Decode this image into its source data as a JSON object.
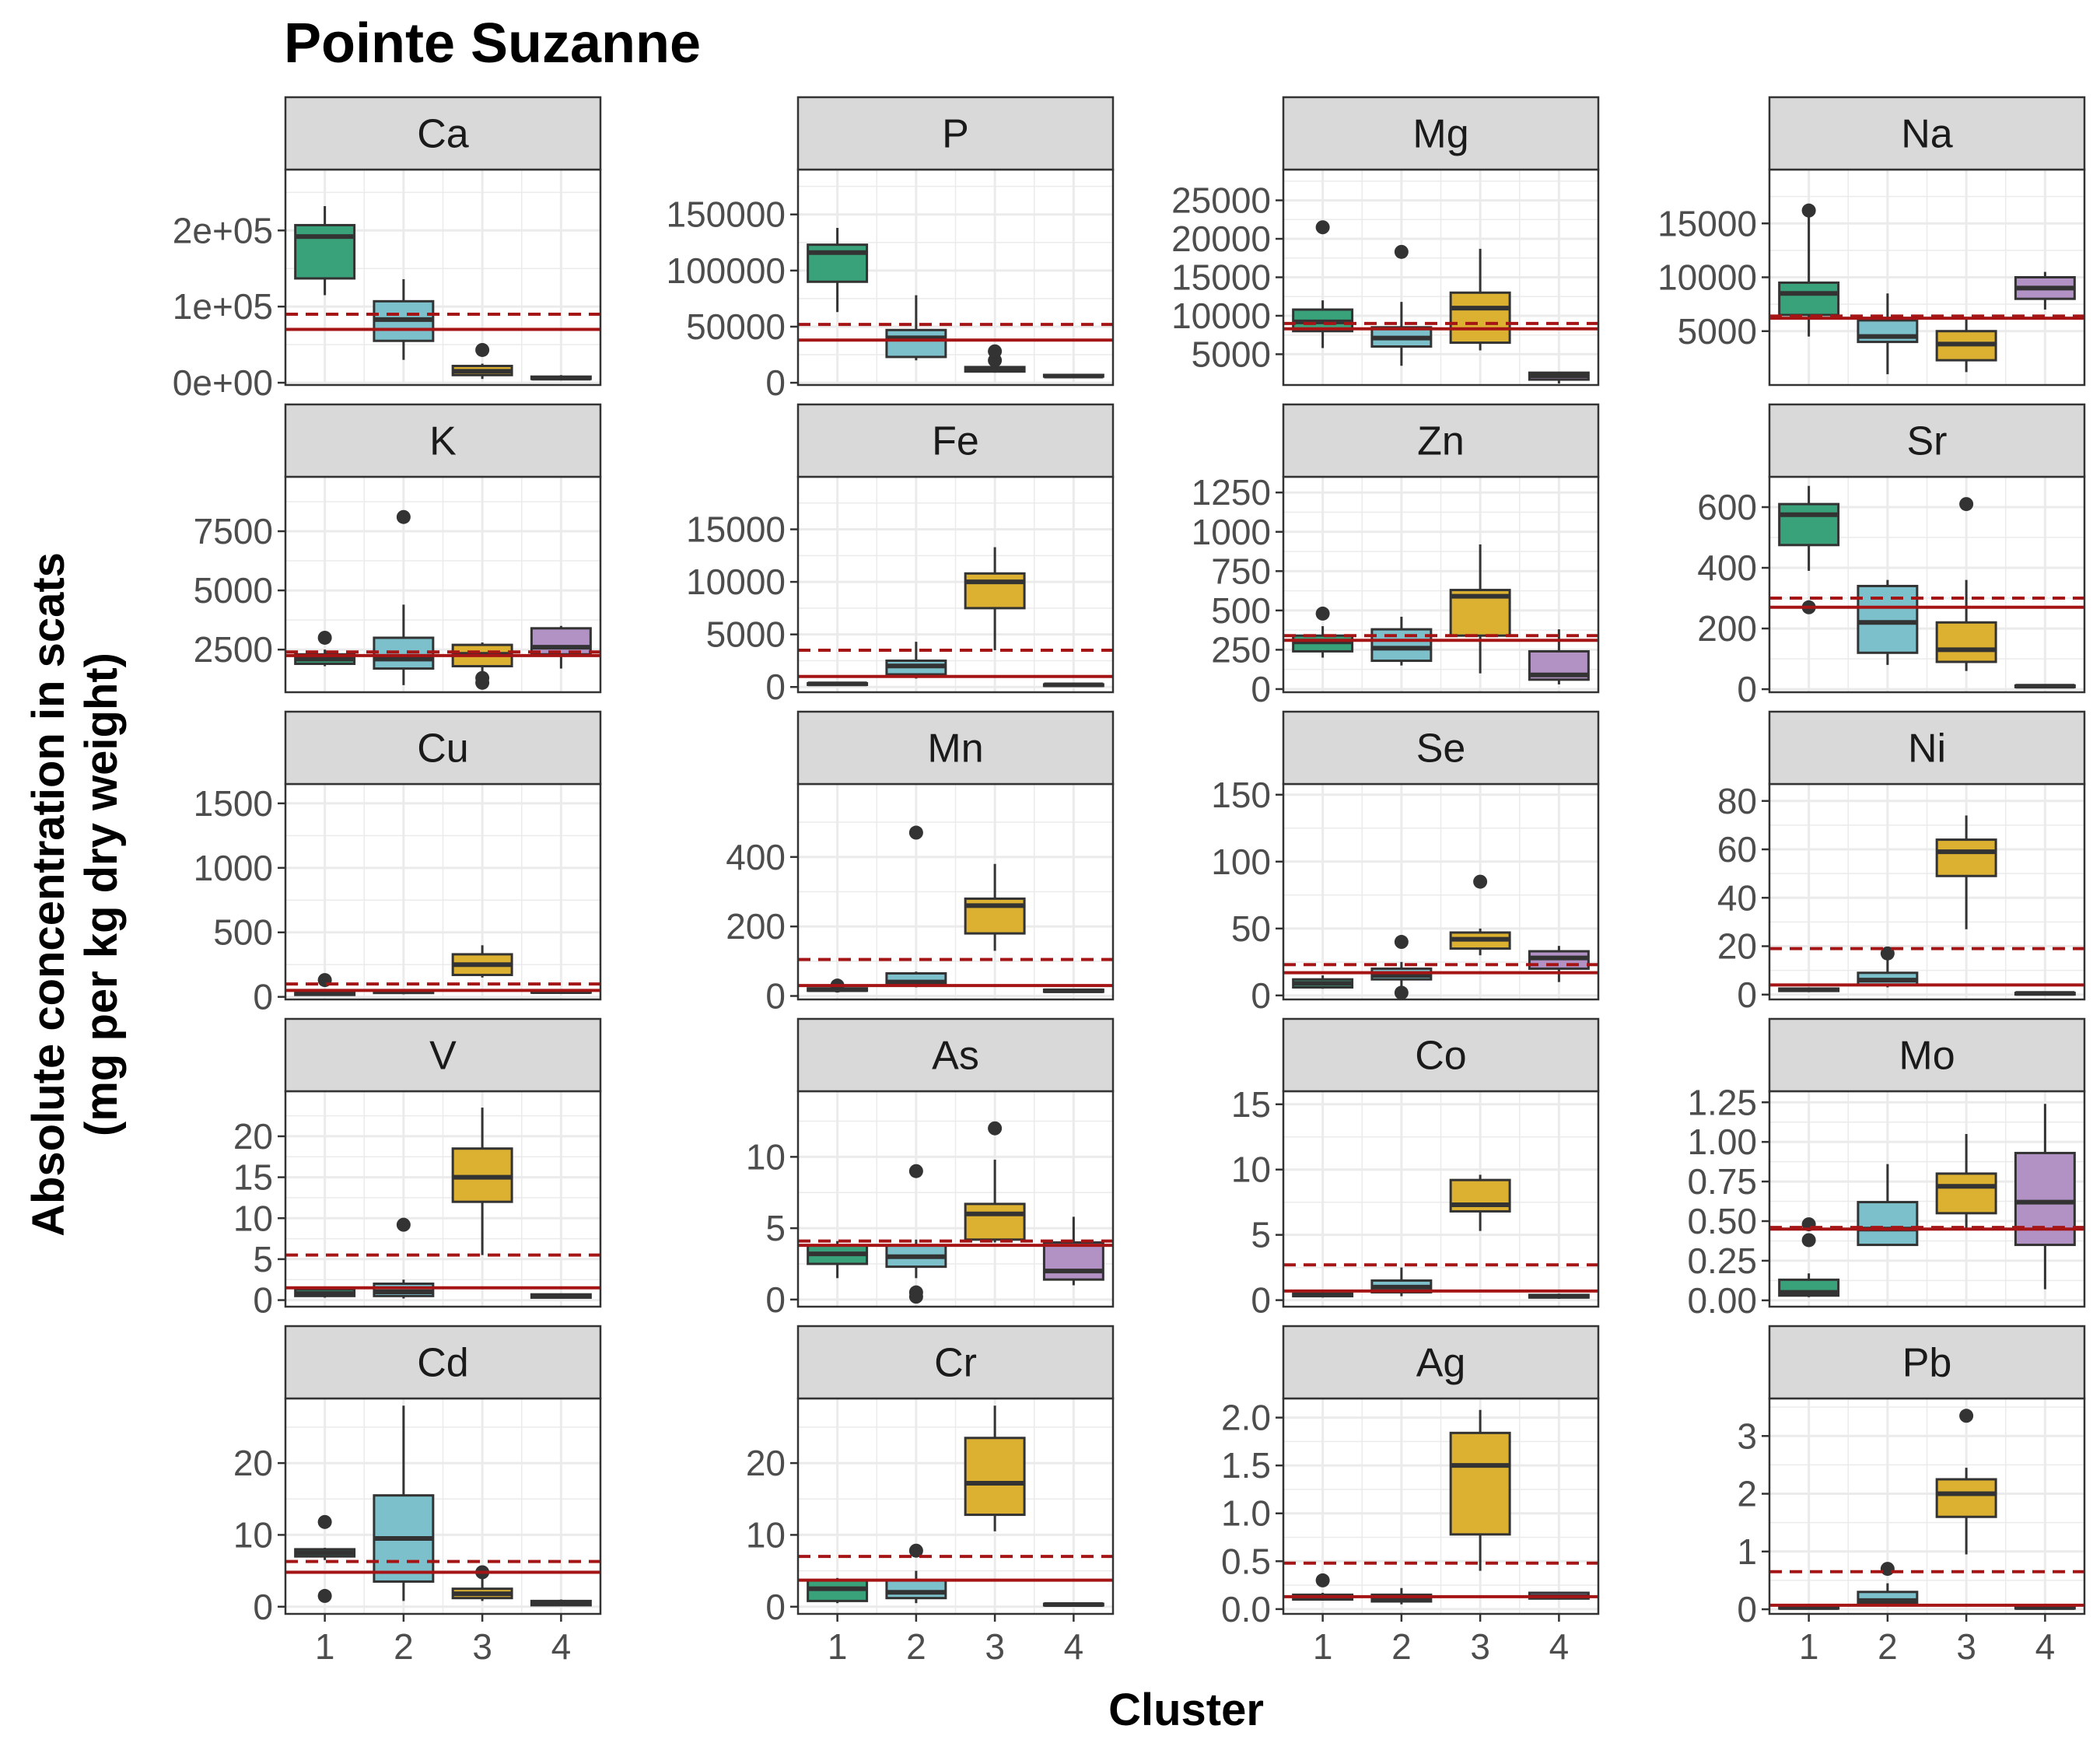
{
  "title": "Pointe Suzanne",
  "xlabel": "Cluster",
  "ylabel_line1": "Absolute concentration in scats",
  "ylabel_line2": "(mg per kg dry weight)",
  "colors": {
    "cluster1": "#3aa27a",
    "cluster2": "#7cc0cb",
    "cluster3": "#dcb031",
    "cluster4": "#b292c4",
    "reference_line": "#a51515",
    "strip_fill": "#d9d9d9",
    "grid": "#ebebeb",
    "box_stroke": "#333333"
  },
  "chart_data": {
    "type": "boxplot",
    "categories": [
      "1",
      "2",
      "3",
      "4"
    ],
    "reference_lines": {
      "solid": "red solid horizontal line (per-element value)",
      "dashed": "red dashed horizontal line (per-element value)"
    },
    "panels": [
      {
        "name": "Ca",
        "ylim": [
          -3000,
          280000
        ],
        "ticks": [
          0,
          100000,
          200000
        ],
        "tick_labels": [
          "0e+00",
          "1e+05",
          "2e+05"
        ],
        "solid": 70000,
        "dashed": 90000,
        "boxes": [
          [
            115000,
            137000,
            192000,
            207000,
            232000,
            []
          ],
          [
            30000,
            55000,
            83000,
            107000,
            136000,
            []
          ],
          [
            5000,
            10000,
            15000,
            22000,
            25000,
            [
              43000
            ]
          ],
          [
            4000,
            5000,
            6000,
            8000,
            10000,
            []
          ]
        ]
      },
      {
        "name": "P",
        "ylim": [
          -2000,
          190000
        ],
        "ticks": [
          0,
          50000,
          100000,
          150000
        ],
        "tick_labels": [
          "0",
          "50000",
          "100000",
          "150000"
        ],
        "solid": 38000,
        "dashed": 52000,
        "boxes": [
          [
            63000,
            90000,
            116000,
            123000,
            138000,
            []
          ],
          [
            20000,
            23000,
            40000,
            47000,
            78000,
            []
          ],
          [
            9000,
            10000,
            12000,
            14000,
            15000,
            [
              20000,
              28000
            ]
          ],
          [
            5000,
            5500,
            6000,
            7000,
            7500,
            []
          ]
        ]
      },
      {
        "name": "Mg",
        "ylim": [
          1000,
          29000
        ],
        "ticks": [
          5000,
          10000,
          15000,
          20000,
          25000
        ],
        "tick_labels": [
          "5000",
          "10000",
          "15000",
          "20000",
          "25000"
        ],
        "solid": 8300,
        "dashed": 9000,
        "boxes": [
          [
            5800,
            8000,
            9200,
            10800,
            12000,
            [
              21500
            ]
          ],
          [
            3500,
            6000,
            7100,
            8500,
            11800,
            [
              18300
            ]
          ],
          [
            5500,
            6500,
            11000,
            13000,
            18700,
            []
          ],
          [
            1200,
            1700,
            2200,
            2600,
            2700,
            []
          ]
        ]
      },
      {
        "name": "Na",
        "ylim": [
          0,
          20000
        ],
        "ticks": [
          5000,
          10000,
          15000
        ],
        "tick_labels": [
          "5000",
          "10000",
          "15000"
        ],
        "solid": 6200,
        "dashed": 6400,
        "boxes": [
          [
            4500,
            6500,
            8500,
            9500,
            16000,
            [
              16200
            ]
          ],
          [
            1000,
            4000,
            4500,
            6000,
            8500,
            []
          ],
          [
            1200,
            2300,
            3800,
            5000,
            6200,
            []
          ],
          [
            7000,
            8000,
            9000,
            10000,
            10500,
            []
          ]
        ]
      },
      {
        "name": "K",
        "ylim": [
          700,
          9800
        ],
        "ticks": [
          2500,
          5000,
          7500
        ],
        "tick_labels": [
          "2500",
          "5000",
          "7500"
        ],
        "solid": 2250,
        "dashed": 2400,
        "boxes": [
          [
            1800,
            1900,
            2100,
            2300,
            2500,
            [
              3000
            ]
          ],
          [
            1000,
            1700,
            2100,
            3000,
            4400,
            [
              8100
            ]
          ],
          [
            1300,
            1800,
            2300,
            2700,
            2800,
            [
              1100,
              1300
            ]
          ],
          [
            1700,
            2300,
            2600,
            3400,
            3500,
            []
          ]
        ]
      },
      {
        "name": "Fe",
        "ylim": [
          -500,
          20000
        ],
        "ticks": [
          0,
          5000,
          10000,
          15000
        ],
        "tick_labels": [
          "0",
          "5000",
          "10000",
          "15000"
        ],
        "solid": 1000,
        "dashed": 3500,
        "boxes": [
          [
            200,
            250,
            300,
            350,
            400,
            []
          ],
          [
            800,
            1200,
            2000,
            2500,
            4300,
            []
          ],
          [
            3500,
            7500,
            10000,
            10800,
            13300,
            []
          ],
          [
            100,
            150,
            200,
            250,
            300,
            []
          ]
        ]
      },
      {
        "name": "Zn",
        "ylim": [
          -20,
          1350
        ],
        "ticks": [
          0,
          250,
          500,
          750,
          1000,
          1250
        ],
        "tick_labels": [
          "0",
          "250",
          "500",
          "750",
          "1000",
          "1250"
        ],
        "solid": 310,
        "dashed": 340,
        "boxes": [
          [
            200,
            240,
            300,
            340,
            400,
            [
              480
            ]
          ],
          [
            150,
            180,
            260,
            380,
            460,
            []
          ],
          [
            100,
            340,
            590,
            630,
            920,
            []
          ],
          [
            30,
            60,
            90,
            240,
            380,
            []
          ]
        ]
      },
      {
        "name": "Sr",
        "ylim": [
          -10,
          700
        ],
        "ticks": [
          0,
          200,
          400,
          600
        ],
        "tick_labels": [
          "0",
          "200",
          "400",
          "600"
        ],
        "solid": 270,
        "dashed": 300,
        "boxes": [
          [
            390,
            475,
            575,
            610,
            670,
            [
              270
            ]
          ],
          [
            80,
            120,
            220,
            340,
            360,
            []
          ],
          [
            60,
            90,
            130,
            220,
            360,
            [
              610
            ]
          ],
          [
            5,
            8,
            10,
            12,
            15,
            []
          ]
        ]
      },
      {
        "name": "Cu",
        "ylim": [
          -20,
          1650
        ],
        "ticks": [
          0,
          500,
          1000,
          1500
        ],
        "tick_labels": [
          "0",
          "500",
          "1000",
          "1500"
        ],
        "solid": 50,
        "dashed": 100,
        "boxes": [
          [
            10,
            15,
            25,
            40,
            60,
            [
              130
            ]
          ],
          [
            20,
            30,
            40,
            50,
            60,
            []
          ],
          [
            150,
            170,
            250,
            330,
            400,
            []
          ],
          [
            30,
            35,
            40,
            45,
            50,
            []
          ]
        ]
      },
      {
        "name": "Mn",
        "ylim": [
          -10,
          610
        ],
        "ticks": [
          0,
          200,
          400
        ],
        "tick_labels": [
          "0",
          "200",
          "400"
        ],
        "solid": 30,
        "dashed": 105,
        "boxes": [
          [
            10,
            15,
            18,
            22,
            25,
            [
              30
            ]
          ],
          [
            25,
            30,
            40,
            65,
            70,
            [
              470
            ]
          ],
          [
            130,
            180,
            260,
            280,
            380,
            []
          ],
          [
            10,
            12,
            15,
            18,
            20,
            []
          ]
        ]
      },
      {
        "name": "Se",
        "ylim": [
          -3,
          158
        ],
        "ticks": [
          0,
          50,
          100,
          150
        ],
        "tick_labels": [
          "0",
          "50",
          "100",
          "150"
        ],
        "solid": 17,
        "dashed": 23,
        "boxes": [
          [
            5,
            6,
            9,
            12,
            15,
            []
          ],
          [
            5,
            12,
            15,
            20,
            25,
            [
              2,
              40
            ]
          ],
          [
            30,
            35,
            42,
            47,
            50,
            [
              85
            ]
          ],
          [
            10,
            20,
            28,
            33,
            37,
            []
          ]
        ]
      },
      {
        "name": "Ni",
        "ylim": [
          -2,
          87
        ],
        "ticks": [
          0,
          20,
          40,
          60,
          80
        ],
        "tick_labels": [
          "0",
          "20",
          "40",
          "60",
          "80"
        ],
        "solid": 4,
        "dashed": 19,
        "boxes": [
          [
            1,
            1.5,
            2,
            2.5,
            3,
            []
          ],
          [
            3,
            4,
            6,
            9,
            16,
            [
              17
            ]
          ],
          [
            27,
            49,
            59,
            64,
            74,
            []
          ],
          [
            0.2,
            0.3,
            0.5,
            0.7,
            1,
            []
          ]
        ]
      },
      {
        "name": "V",
        "ylim": [
          -0.8,
          25.5
        ],
        "ticks": [
          0,
          5,
          10,
          15,
          20
        ],
        "tick_labels": [
          "0",
          "5",
          "10",
          "15",
          "20"
        ],
        "solid": 1.5,
        "dashed": 5.5,
        "boxes": [
          [
            0.3,
            0.5,
            0.8,
            1.3,
            1.5,
            []
          ],
          [
            0.2,
            0.5,
            1,
            2,
            2.5,
            [
              9.2
            ]
          ],
          [
            5.5,
            12,
            15,
            18.5,
            23.5,
            []
          ],
          [
            0.2,
            0.3,
            0.5,
            0.7,
            0.8,
            []
          ]
        ]
      },
      {
        "name": "As",
        "ylim": [
          -0.5,
          14.6
        ],
        "ticks": [
          0,
          5,
          10
        ],
        "tick_labels": [
          "0",
          "5",
          "10"
        ],
        "solid": 3.8,
        "dashed": 4.1,
        "boxes": [
          [
            1.5,
            2.5,
            3.2,
            3.8,
            4.1,
            []
          ],
          [
            1.5,
            2.3,
            3,
            3.8,
            4.2,
            [
              0.2,
              0.5,
              9
            ]
          ],
          [
            4,
            4.2,
            6,
            6.7,
            9.8,
            [
              12
            ]
          ],
          [
            1,
            1.4,
            2,
            4,
            5.8,
            []
          ]
        ]
      },
      {
        "name": "Co",
        "ylim": [
          -0.5,
          16
        ],
        "ticks": [
          0,
          5,
          10,
          15
        ],
        "tick_labels": [
          "0",
          "5",
          "10",
          "15"
        ],
        "solid": 0.7,
        "dashed": 2.7,
        "boxes": [
          [
            0.2,
            0.3,
            0.4,
            0.5,
            0.6,
            []
          ],
          [
            0.3,
            0.6,
            1,
            1.5,
            2.5,
            []
          ],
          [
            5.3,
            6.8,
            7.3,
            9.2,
            9.6,
            []
          ],
          [
            0.1,
            0.2,
            0.3,
            0.4,
            0.5,
            []
          ]
        ]
      },
      {
        "name": "Mo",
        "ylim": [
          -0.04,
          1.32
        ],
        "ticks": [
          0,
          0.25,
          0.5,
          0.75,
          1,
          1.25
        ],
        "tick_labels": [
          "0.00",
          "0.25",
          "0.50",
          "0.75",
          "1.00",
          "1.25"
        ],
        "solid": 0.45,
        "dashed": 0.46,
        "boxes": [
          [
            0.02,
            0.03,
            0.05,
            0.13,
            0.17,
            [
              0.38,
              0.48
            ]
          ],
          [
            0.35,
            0.35,
            0.45,
            0.62,
            0.86,
            []
          ],
          [
            0.45,
            0.55,
            0.72,
            0.8,
            1.05,
            []
          ],
          [
            0.07,
            0.35,
            0.62,
            0.93,
            1.24,
            []
          ]
        ]
      },
      {
        "name": "Cd",
        "ylim": [
          -1,
          29
        ],
        "ticks": [
          0,
          10,
          20
        ],
        "tick_labels": [
          "0",
          "10",
          "20"
        ],
        "solid": 4.8,
        "dashed": 6.3,
        "boxes": [
          [
            6.5,
            7,
            7.5,
            8,
            8.2,
            [
              1.5,
              11.8
            ]
          ],
          [
            0.8,
            3.5,
            9.5,
            15.5,
            28,
            []
          ],
          [
            0.8,
            1.2,
            1.8,
            2.5,
            4.5,
            [
              4.8
            ]
          ],
          [
            0.1,
            0.2,
            0.5,
            0.8,
            1,
            []
          ]
        ]
      },
      {
        "name": "Cr",
        "ylim": [
          -1,
          29
        ],
        "ticks": [
          0,
          10,
          20
        ],
        "tick_labels": [
          "0",
          "10",
          "20"
        ],
        "solid": 3.7,
        "dashed": 7,
        "boxes": [
          [
            0.5,
            0.8,
            2.5,
            3.7,
            4,
            []
          ],
          [
            0.5,
            1.2,
            2,
            3.7,
            5,
            [
              7.8
            ]
          ],
          [
            10.5,
            12.8,
            17.2,
            23.5,
            28,
            []
          ],
          [
            0.1,
            0.2,
            0.3,
            0.4,
            0.5,
            []
          ]
        ]
      },
      {
        "name": "Ag",
        "ylim": [
          -0.05,
          2.2
        ],
        "ticks": [
          0,
          0.5,
          1,
          1.5,
          2
        ],
        "tick_labels": [
          "0.0",
          "0.5",
          "1.0",
          "1.5",
          "2.0"
        ],
        "solid": 0.13,
        "dashed": 0.48,
        "boxes": [
          [
            0.09,
            0.1,
            0.12,
            0.15,
            0.17,
            [
              0.3
            ]
          ],
          [
            0.05,
            0.08,
            0.11,
            0.15,
            0.22,
            []
          ],
          [
            0.4,
            0.78,
            1.5,
            1.84,
            2.08,
            []
          ],
          [
            0.1,
            0.11,
            0.13,
            0.17,
            0.18,
            []
          ]
        ]
      },
      {
        "name": "Pb",
        "ylim": [
          -0.08,
          3.65
        ],
        "ticks": [
          0,
          1,
          2,
          3
        ],
        "tick_labels": [
          "0",
          "1",
          "2",
          "3"
        ],
        "solid": 0.07,
        "dashed": 0.65,
        "boxes": [
          [
            0.01,
            0.02,
            0.03,
            0.04,
            0.05,
            []
          ],
          [
            0.05,
            0.1,
            0.15,
            0.3,
            0.45,
            [
              0.7
            ]
          ],
          [
            0.95,
            1.6,
            2,
            2.25,
            2.45,
            [
              3.35
            ]
          ],
          [
            0.01,
            0.02,
            0.03,
            0.04,
            0.05,
            []
          ]
        ]
      }
    ]
  }
}
